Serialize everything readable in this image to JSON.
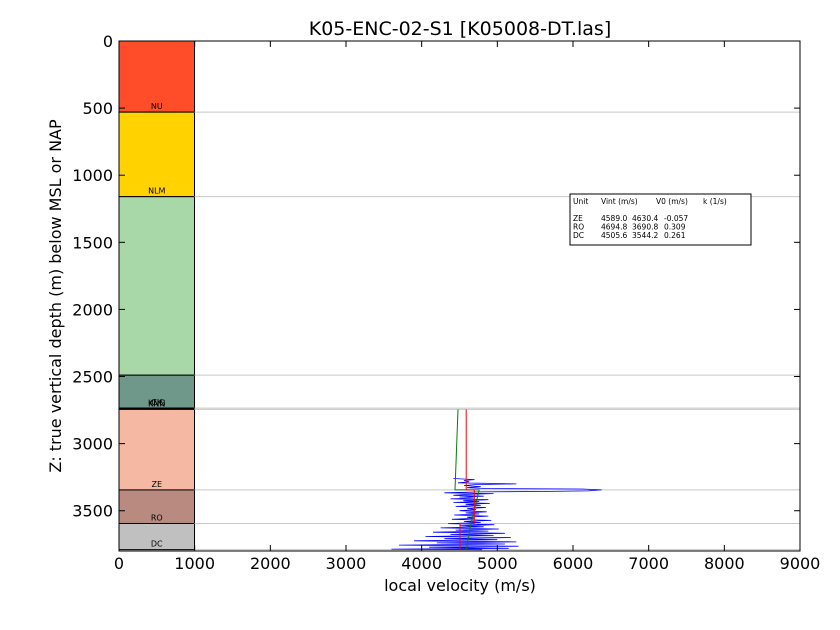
{
  "chart_data": {
    "type": "line",
    "title": "K05-ENC-02-S1 [K05008-DT.las]",
    "xlabel": "local velocity (m/s)",
    "ylabel": "Z: true vertical depth (m) below MSL or NAP",
    "xlim": [
      0,
      9000
    ],
    "ylim": [
      3800,
      0
    ],
    "y_inverted": true,
    "x_ticks": [
      "0",
      "1000",
      "2000",
      "3000",
      "4000",
      "5000",
      "6000",
      "7000",
      "8000",
      "9000"
    ],
    "y_ticks": [
      "0",
      "500",
      "1000",
      "1500",
      "2000",
      "2500",
      "3000",
      "3500"
    ],
    "units": [
      {
        "label": "NU",
        "top": 0,
        "base": 530,
        "color": "#ff4d2a"
      },
      {
        "label": "NLM",
        "top": 530,
        "base": 1160,
        "color": "#ffd200"
      },
      {
        "label": "",
        "top": 1160,
        "base": 2490,
        "color": "#a8d8a8"
      },
      {
        "label": "CK",
        "top": 2490,
        "base": 2735,
        "color": "#6f978a"
      },
      {
        "label": "KNG",
        "top": 2735,
        "base": 2740,
        "color": "#4f6f63"
      },
      {
        "label": "KNN",
        "top": 2740,
        "base": 2745,
        "color": "#4f6f63"
      },
      {
        "label": "ZE",
        "top": 2745,
        "base": 3345,
        "color": "#f5b8a3"
      },
      {
        "label": "RO",
        "top": 3345,
        "base": 3595,
        "color": "#b88a80"
      },
      {
        "label": "DC",
        "top": 3595,
        "base": 3790,
        "color": "#c0c0c0"
      }
    ],
    "horizon_lines": [
      530,
      1160,
      2490,
      2735,
      2745,
      3345,
      3595,
      3790
    ],
    "series": [
      {
        "color": "#0000ff",
        "points": [
          [
            4420,
            3260
          ],
          [
            4700,
            3268
          ],
          [
            4560,
            3275
          ],
          [
            4630,
            3285
          ],
          [
            4480,
            3292
          ],
          [
            5250,
            3300
          ],
          [
            4700,
            3305
          ],
          [
            4560,
            3312
          ],
          [
            4780,
            3320
          ],
          [
            4600,
            3328
          ],
          [
            4880,
            3335
          ],
          [
            6120,
            3338
          ],
          [
            6380,
            3345
          ],
          [
            6200,
            3352
          ],
          [
            5700,
            3356
          ],
          [
            4750,
            3360
          ],
          [
            4300,
            3366
          ],
          [
            4950,
            3372
          ],
          [
            4600,
            3378
          ],
          [
            4420,
            3385
          ],
          [
            4820,
            3392
          ],
          [
            4500,
            3398
          ],
          [
            4700,
            3405
          ],
          [
            4380,
            3412
          ],
          [
            4880,
            3418
          ],
          [
            4550,
            3425
          ],
          [
            4760,
            3432
          ],
          [
            4420,
            3438
          ],
          [
            4900,
            3445
          ],
          [
            4580,
            3452
          ],
          [
            4780,
            3460
          ],
          [
            4450,
            3468
          ],
          [
            4850,
            3476
          ],
          [
            4600,
            3484
          ],
          [
            4720,
            3492
          ],
          [
            4500,
            3500
          ],
          [
            4860,
            3508
          ],
          [
            4580,
            3516
          ],
          [
            4760,
            3524
          ],
          [
            4430,
            3532
          ],
          [
            4880,
            3540
          ],
          [
            4600,
            3548
          ],
          [
            4700,
            3556
          ],
          [
            4400,
            3564
          ],
          [
            4920,
            3572
          ],
          [
            4560,
            3580
          ],
          [
            4780,
            3588
          ],
          [
            4350,
            3596
          ],
          [
            4960,
            3604
          ],
          [
            4500,
            3612
          ],
          [
            4820,
            3620
          ],
          [
            4250,
            3628
          ],
          [
            5020,
            3636
          ],
          [
            4450,
            3644
          ],
          [
            4880,
            3652
          ],
          [
            4150,
            3660
          ],
          [
            5100,
            3668
          ],
          [
            4380,
            3676
          ],
          [
            4950,
            3684
          ],
          [
            4050,
            3692
          ],
          [
            5180,
            3700
          ],
          [
            4300,
            3708
          ],
          [
            5000,
            3716
          ],
          [
            3900,
            3724
          ],
          [
            5250,
            3732
          ],
          [
            4200,
            3740
          ],
          [
            5100,
            3748
          ],
          [
            3700,
            3756
          ],
          [
            5280,
            3764
          ],
          [
            4100,
            3772
          ],
          [
            5150,
            3780
          ],
          [
            3600,
            3786
          ],
          [
            4800,
            3790
          ]
        ]
      },
      {
        "color": "#008000",
        "points": [
          [
            4480,
            2745
          ],
          [
            4440,
            3345
          ],
          [
            4760,
            3345
          ],
          [
            4650,
            3600
          ],
          [
            4590,
            3790
          ]
        ]
      },
      {
        "color": "#ff0000",
        "points": [
          [
            4589,
            2745
          ],
          [
            4589,
            3345
          ],
          [
            4695,
            3345
          ],
          [
            4695,
            3595
          ],
          [
            4506,
            3595
          ],
          [
            4506,
            3790
          ]
        ]
      }
    ],
    "table": {
      "headers": [
        "Unit",
        "Vint (m/s)",
        "V0 (m/s)",
        "k (1/s)"
      ],
      "rows": [
        [
          "ZE",
          "4589.0",
          "4630.4",
          "-0.057"
        ],
        [
          "RO",
          "4694.8",
          "3690.8",
          "0.309"
        ],
        [
          "DC",
          "4505.6",
          "3544.2",
          "0.261"
        ]
      ]
    }
  }
}
